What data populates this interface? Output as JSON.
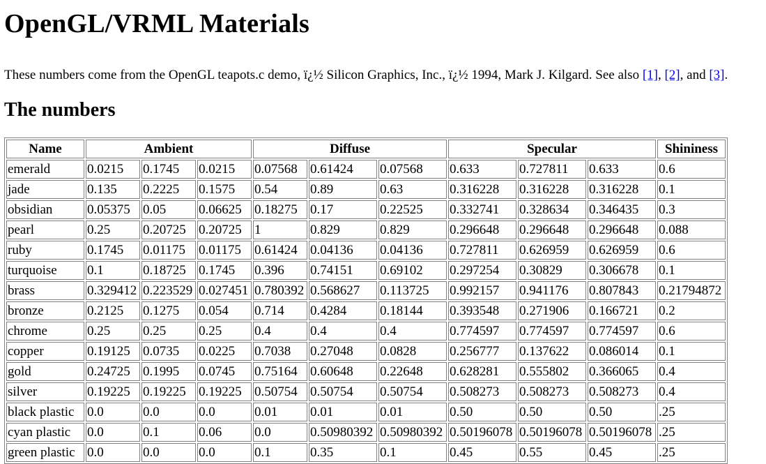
{
  "page": {
    "title": "OpenGL/VRML Materials",
    "intro_text": "These numbers come from the OpenGL teapots.c demo, ï¿½ Silicon Graphics, Inc., ï¿½ 1994, Mark J. Kilgard. See also ",
    "links": [
      "[1]",
      "[2]",
      "[3]"
    ],
    "sep1": ", ",
    "sep2": ", and ",
    "end": ".",
    "section_heading": "The numbers"
  },
  "table": {
    "headers": [
      "Name",
      "Ambient",
      "Diffuse",
      "Specular",
      "Shininess"
    ],
    "rows": [
      [
        "emerald",
        "0.0215",
        "0.1745",
        "0.0215",
        "0.07568",
        "0.61424",
        "0.07568",
        "0.633",
        "0.727811",
        "0.633",
        "0.6"
      ],
      [
        "jade",
        "0.135",
        "0.2225",
        "0.1575",
        "0.54",
        "0.89",
        "0.63",
        "0.316228",
        "0.316228",
        "0.316228",
        "0.1"
      ],
      [
        "obsidian",
        "0.05375",
        "0.05",
        "0.06625",
        "0.18275",
        "0.17",
        "0.22525",
        "0.332741",
        "0.328634",
        "0.346435",
        "0.3"
      ],
      [
        "pearl",
        "0.25",
        "0.20725",
        "0.20725",
        "1",
        "0.829",
        "0.829",
        "0.296648",
        "0.296648",
        "0.296648",
        "0.088"
      ],
      [
        "ruby",
        "0.1745",
        "0.01175",
        "0.01175",
        "0.61424",
        "0.04136",
        "0.04136",
        "0.727811",
        "0.626959",
        "0.626959",
        "0.6"
      ],
      [
        "turquoise",
        "0.1",
        "0.18725",
        "0.1745",
        "0.396",
        "0.74151",
        "0.69102",
        "0.297254",
        "0.30829",
        "0.306678",
        "0.1"
      ],
      [
        "brass",
        "0.329412",
        "0.223529",
        "0.027451",
        "0.780392",
        "0.568627",
        "0.113725",
        "0.992157",
        "0.941176",
        "0.807843",
        "0.21794872"
      ],
      [
        "bronze",
        "0.2125",
        "0.1275",
        "0.054",
        "0.714",
        "0.4284",
        "0.18144",
        "0.393548",
        "0.271906",
        "0.166721",
        "0.2"
      ],
      [
        "chrome",
        "0.25",
        "0.25",
        "0.25",
        "0.4",
        "0.4",
        "0.4",
        "0.774597",
        "0.774597",
        "0.774597",
        "0.6"
      ],
      [
        "copper",
        "0.19125",
        "0.0735",
        "0.0225",
        "0.7038",
        "0.27048",
        "0.0828",
        "0.256777",
        "0.137622",
        "0.086014",
        "0.1"
      ],
      [
        "gold",
        "0.24725",
        "0.1995",
        "0.0745",
        "0.75164",
        "0.60648",
        "0.22648",
        "0.628281",
        "0.555802",
        "0.366065",
        "0.4"
      ],
      [
        "silver",
        "0.19225",
        "0.19225",
        "0.19225",
        "0.50754",
        "0.50754",
        "0.50754",
        "0.508273",
        "0.508273",
        "0.508273",
        "0.4"
      ],
      [
        "black plastic",
        "0.0",
        "0.0",
        "0.0",
        "0.01",
        "0.01",
        "0.01",
        "0.50",
        "0.50",
        "0.50",
        ".25"
      ],
      [
        "cyan plastic",
        "0.0",
        "0.1",
        "0.06",
        "0.0",
        "0.50980392",
        "0.50980392",
        "0.50196078",
        "0.50196078",
        "0.50196078",
        ".25"
      ],
      [
        "green plastic",
        "0.0",
        "0.0",
        "0.0",
        "0.1",
        "0.35",
        "0.1",
        "0.45",
        "0.55",
        "0.45",
        ".25"
      ]
    ]
  },
  "colors": {
    "link": "#0000ee",
    "text": "#000000",
    "table_border": "#808080",
    "background": "#ffffff"
  }
}
